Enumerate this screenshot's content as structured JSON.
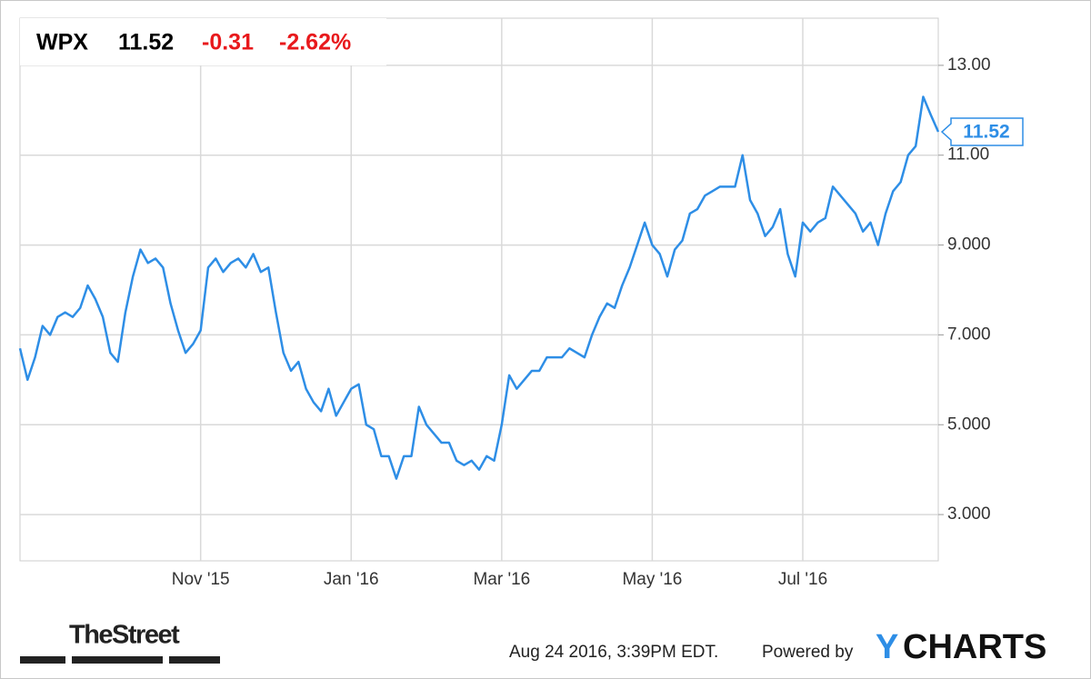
{
  "header": {
    "symbol": "WPX",
    "price": "11.52",
    "change": "-0.31",
    "change_pct": "-2.62%"
  },
  "chart_data": {
    "type": "line",
    "categories": [
      null,
      null,
      null,
      null,
      null,
      null,
      null,
      null,
      null,
      null,
      null,
      null,
      null,
      null,
      null,
      null,
      null,
      null,
      null,
      null,
      null,
      null,
      null,
      null,
      "Nov '15",
      null,
      null,
      null,
      null,
      null,
      null,
      null,
      null,
      null,
      null,
      null,
      null,
      null,
      null,
      null,
      null,
      null,
      null,
      null,
      "Jan '16",
      null,
      null,
      null,
      null,
      null,
      null,
      null,
      null,
      null,
      null,
      null,
      null,
      null,
      null,
      null,
      null,
      null,
      null,
      null,
      "Mar '16",
      null,
      null,
      null,
      null,
      null,
      null,
      null,
      null,
      null,
      null,
      null,
      null,
      null,
      null,
      null,
      null,
      null,
      null,
      null,
      "May '16",
      null,
      null,
      null,
      null,
      null,
      null,
      null,
      null,
      null,
      null,
      null,
      null,
      null,
      null,
      null,
      null,
      null,
      null,
      null,
      "Jul '16",
      null,
      null,
      null,
      null,
      null,
      null,
      null,
      null,
      null,
      null,
      null,
      null,
      null,
      null,
      null,
      null,
      null,
      null
    ],
    "series": [
      {
        "name": "WPX",
        "color": "#2e8ee6",
        "values": [
          6.7,
          6.0,
          6.5,
          7.2,
          7.0,
          7.4,
          7.5,
          7.4,
          7.6,
          8.1,
          7.8,
          7.4,
          6.6,
          6.4,
          7.5,
          8.3,
          8.9,
          8.6,
          8.7,
          8.5,
          7.7,
          7.1,
          6.6,
          6.8,
          7.1,
          8.5,
          8.7,
          8.4,
          8.6,
          8.7,
          8.5,
          8.8,
          8.4,
          8.5,
          7.5,
          6.6,
          6.2,
          6.4,
          5.8,
          5.5,
          5.3,
          5.8,
          5.2,
          5.5,
          5.8,
          5.9,
          5.0,
          4.9,
          4.3,
          4.3,
          3.8,
          4.3,
          4.3,
          5.4,
          5.0,
          4.8,
          4.6,
          4.6,
          4.2,
          4.1,
          4.2,
          4.0,
          4.3,
          4.2,
          5.0,
          6.1,
          5.8,
          6.0,
          6.2,
          6.2,
          6.5,
          6.5,
          6.5,
          6.7,
          6.6,
          6.5,
          7.0,
          7.4,
          7.7,
          7.6,
          8.1,
          8.5,
          9.0,
          9.5,
          9.0,
          8.8,
          8.3,
          8.9,
          9.1,
          9.7,
          9.8,
          10.1,
          10.2,
          10.3,
          10.3,
          10.3,
          11.0,
          10.0,
          9.7,
          9.2,
          9.4,
          9.8,
          8.8,
          8.3,
          9.5,
          9.3,
          9.5,
          9.6,
          10.3,
          10.1,
          9.9,
          9.7,
          9.3,
          9.5,
          9.0,
          9.7,
          10.2,
          10.4,
          11.0,
          11.2,
          12.3,
          11.9,
          11.52
        ]
      }
    ],
    "ylim": [
      1.97,
      14.05
    ],
    "yticks": [
      {
        "value": 3,
        "label": "3.000"
      },
      {
        "value": 5,
        "label": "5.000"
      },
      {
        "value": 7,
        "label": "7.000"
      },
      {
        "value": 9,
        "label": "9.000"
      },
      {
        "value": 11,
        "label": "11.00"
      },
      {
        "value": 13,
        "label": "13.00"
      }
    ],
    "grid": true
  },
  "footer": {
    "source_logo": "TheStreet",
    "timestamp": "Aug 24 2016, 3:39PM EDT.",
    "powered_by": "Powered by",
    "logo_y": "Y",
    "logo_rest": "CHARTS"
  }
}
